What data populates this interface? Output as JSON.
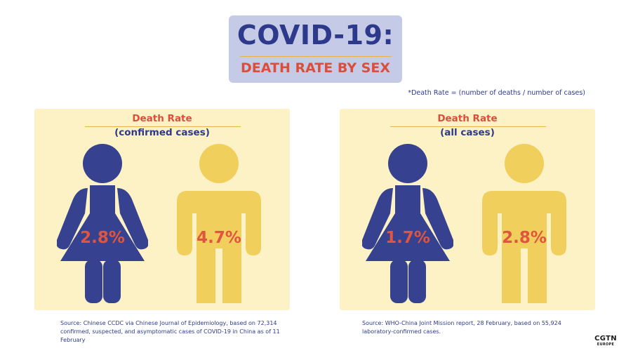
{
  "title": {
    "main": "COVID-19:",
    "subtitle": "DEATH RATE BY SEX"
  },
  "footnote": "*Death Rate = (number of deaths / number of cases)",
  "panels": [
    {
      "title": "Death Rate",
      "subtitle": "(confirmed cases)",
      "female_rate": "2.8%",
      "male_rate": "4.7%",
      "source": "Source: Chinese CCDC via Chinese Journal of Epidemiology, based on 72,314 confirmed, suspected, and asymptomatic cases of COVID-19 in China as of 11 February"
    },
    {
      "title": "Death Rate",
      "subtitle": "(all cases)",
      "female_rate": "1.7%",
      "male_rate": "2.8%",
      "source": "Source: WHO-China Joint Mission report, 28 February, based on 55,924 laboratory-confirmed cases."
    }
  ],
  "logo": {
    "main": "CGTN",
    "sub": "EUROPE"
  },
  "colors": {
    "female": "#36418f",
    "male": "#f1cf5c",
    "rate_text": "#e0553f",
    "panel_bg": "#fdf2c6",
    "title_bg": "#c5cbe7"
  }
}
